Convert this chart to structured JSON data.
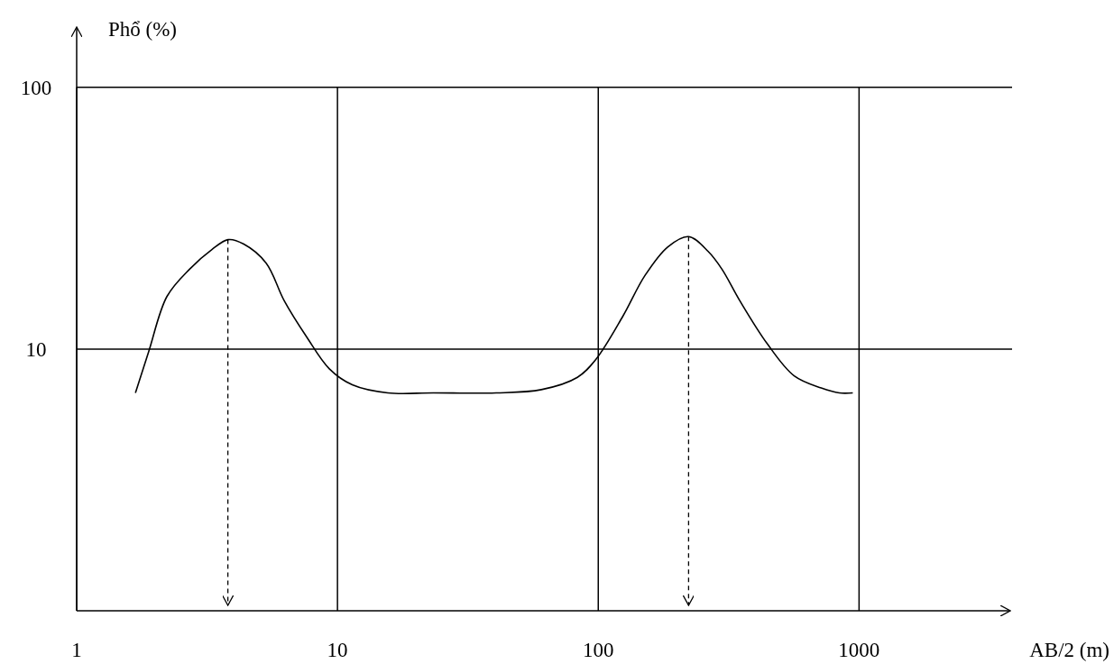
{
  "chart_data": {
    "type": "line",
    "xlabel": "AB/2 (m)",
    "ylabel": "Phổ (%)",
    "log": "xy",
    "xlim": [
      1,
      3800
    ],
    "ylim": [
      1,
      170
    ],
    "xticks": [
      1,
      10,
      100,
      1000
    ],
    "yticks": [
      10,
      100
    ],
    "grid": true,
    "marker": "none",
    "line_style": "solid",
    "series": [
      {
        "color": "#000000",
        "x": [
          1.68,
          1.89,
          2.22,
          2.71,
          3.3,
          3.81,
          4.37,
          5.33,
          6.25,
          7.63,
          9.31,
          11.4,
          15.6,
          23.3,
          40.6,
          60.5,
          83.2,
          97.7,
          124,
          151,
          185,
          222,
          264,
          298,
          349,
          444,
          564,
          716,
          840,
          946
        ],
        "values": [
          6.8,
          9.8,
          15.9,
          20.2,
          24,
          26.2,
          25.2,
          21.3,
          15.3,
          11.1,
          8.4,
          7.3,
          6.8,
          6.8,
          6.8,
          7,
          7.8,
          9.1,
          13.3,
          19.1,
          24.6,
          26.9,
          23.6,
          20.2,
          15.3,
          10.5,
          7.9,
          7.1,
          6.8,
          6.8
        ]
      }
    ],
    "ref_lines": [
      {
        "axis": "x",
        "value": 3.8,
        "line_style": "dashed",
        "color": "#000000"
      },
      {
        "axis": "x",
        "value": 222,
        "line_style": "dashed",
        "color": "#000000"
      }
    ]
  }
}
